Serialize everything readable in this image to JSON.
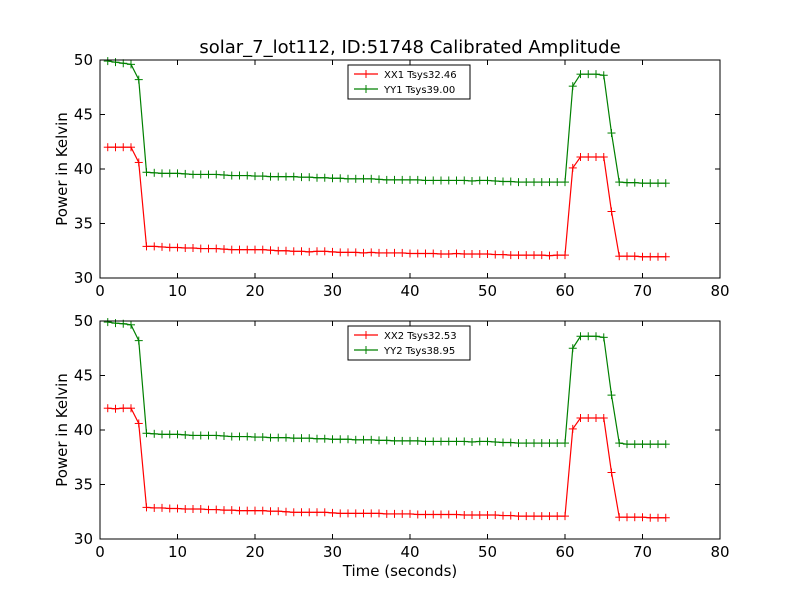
{
  "figure_title": "solar_7_lot112, ID:51748 Calibrated Amplitude",
  "chart_data": [
    {
      "type": "line",
      "title": "solar_7_lot112, ID:51748 Calibrated Amplitude",
      "xlabel": "",
      "ylabel": "Power in Kelvin",
      "xlim": [
        0,
        80
      ],
      "ylim": [
        30,
        50
      ],
      "xticks": [
        0,
        10,
        20,
        30,
        40,
        50,
        60,
        70,
        80
      ],
      "yticks": [
        30,
        35,
        40,
        45,
        50
      ],
      "grid": false,
      "legend_position": "top-center",
      "marker": "+",
      "series": [
        {
          "name": "XX1 Tsys32.46",
          "color": "#ff0000",
          "x": [
            1,
            2,
            3,
            4,
            5,
            6,
            7,
            8,
            9,
            10,
            11,
            12,
            13,
            14,
            15,
            16,
            17,
            18,
            19,
            20,
            21,
            22,
            23,
            24,
            25,
            26,
            27,
            28,
            29,
            30,
            31,
            32,
            33,
            34,
            35,
            36,
            37,
            38,
            39,
            40,
            41,
            42,
            43,
            44,
            45,
            46,
            47,
            48,
            49,
            50,
            51,
            52,
            53,
            54,
            55,
            56,
            57,
            58,
            59,
            60,
            61,
            62,
            63,
            64,
            65,
            66,
            67,
            68,
            69,
            70,
            71,
            72,
            73
          ],
          "y": [
            42.0,
            42.0,
            42.0,
            42.0,
            40.6,
            32.9,
            32.9,
            32.85,
            32.8,
            32.8,
            32.75,
            32.75,
            32.7,
            32.7,
            32.7,
            32.65,
            32.6,
            32.6,
            32.6,
            32.6,
            32.6,
            32.55,
            32.5,
            32.5,
            32.45,
            32.45,
            32.4,
            32.45,
            32.45,
            32.4,
            32.35,
            32.35,
            32.35,
            32.3,
            32.35,
            32.3,
            32.3,
            32.3,
            32.3,
            32.25,
            32.25,
            32.25,
            32.25,
            32.2,
            32.2,
            32.25,
            32.2,
            32.2,
            32.2,
            32.2,
            32.15,
            32.15,
            32.1,
            32.1,
            32.1,
            32.1,
            32.1,
            32.05,
            32.1,
            32.1,
            40.1,
            41.1,
            41.1,
            41.1,
            41.1,
            36.1,
            32.0,
            32.0,
            32.0,
            31.95,
            31.95,
            31.95,
            31.95
          ]
        },
        {
          "name": "YY1 Tsys39.00",
          "color": "#008000",
          "x": [
            1,
            2,
            3,
            4,
            5,
            6,
            7,
            8,
            9,
            10,
            11,
            12,
            13,
            14,
            15,
            16,
            17,
            18,
            19,
            20,
            21,
            22,
            23,
            24,
            25,
            26,
            27,
            28,
            29,
            30,
            31,
            32,
            33,
            34,
            35,
            36,
            37,
            38,
            39,
            40,
            41,
            42,
            43,
            44,
            45,
            46,
            47,
            48,
            49,
            50,
            51,
            52,
            53,
            54,
            55,
            56,
            57,
            58,
            59,
            60,
            61,
            62,
            63,
            64,
            65,
            66,
            67,
            68,
            69,
            70,
            71,
            72,
            73
          ],
          "y": [
            49.9,
            49.8,
            49.7,
            49.6,
            48.2,
            39.7,
            39.65,
            39.6,
            39.6,
            39.6,
            39.55,
            39.5,
            39.5,
            39.5,
            39.5,
            39.45,
            39.4,
            39.4,
            39.4,
            39.35,
            39.35,
            39.3,
            39.3,
            39.3,
            39.3,
            39.25,
            39.25,
            39.2,
            39.2,
            39.15,
            39.15,
            39.1,
            39.1,
            39.1,
            39.1,
            39.05,
            39.0,
            39.0,
            39.0,
            39.0,
            39.0,
            38.95,
            38.95,
            38.95,
            38.95,
            38.95,
            38.95,
            38.9,
            38.95,
            38.95,
            38.9,
            38.85,
            38.85,
            38.8,
            38.8,
            38.8,
            38.8,
            38.8,
            38.8,
            38.8,
            47.6,
            48.7,
            48.7,
            48.7,
            48.6,
            43.3,
            38.8,
            38.75,
            38.75,
            38.7,
            38.7,
            38.7,
            38.7
          ]
        }
      ]
    },
    {
      "type": "line",
      "title": "",
      "xlabel": "Time (seconds)",
      "ylabel": "Power in Kelvin",
      "xlim": [
        0,
        80
      ],
      "ylim": [
        30,
        50
      ],
      "xticks": [
        0,
        10,
        20,
        30,
        40,
        50,
        60,
        70,
        80
      ],
      "yticks": [
        30,
        35,
        40,
        45,
        50
      ],
      "grid": false,
      "legend_position": "top-center",
      "marker": "+",
      "series": [
        {
          "name": "XX2 Tsys32.53",
          "color": "#ff0000",
          "x": [
            1,
            2,
            3,
            4,
            5,
            6,
            7,
            8,
            9,
            10,
            11,
            12,
            13,
            14,
            15,
            16,
            17,
            18,
            19,
            20,
            21,
            22,
            23,
            24,
            25,
            26,
            27,
            28,
            29,
            30,
            31,
            32,
            33,
            34,
            35,
            36,
            37,
            38,
            39,
            40,
            41,
            42,
            43,
            44,
            45,
            46,
            47,
            48,
            49,
            50,
            51,
            52,
            53,
            54,
            55,
            56,
            57,
            58,
            59,
            60,
            61,
            62,
            63,
            64,
            65,
            66,
            67,
            68,
            69,
            70,
            71,
            72,
            73
          ],
          "y": [
            42.0,
            41.95,
            42.0,
            42.0,
            40.6,
            32.9,
            32.85,
            32.85,
            32.8,
            32.8,
            32.75,
            32.75,
            32.75,
            32.7,
            32.7,
            32.65,
            32.65,
            32.6,
            32.6,
            32.6,
            32.6,
            32.55,
            32.55,
            32.5,
            32.45,
            32.45,
            32.45,
            32.45,
            32.45,
            32.4,
            32.35,
            32.35,
            32.35,
            32.35,
            32.35,
            32.35,
            32.3,
            32.3,
            32.3,
            32.3,
            32.25,
            32.25,
            32.25,
            32.25,
            32.25,
            32.25,
            32.2,
            32.2,
            32.2,
            32.2,
            32.2,
            32.15,
            32.15,
            32.1,
            32.1,
            32.1,
            32.1,
            32.1,
            32.1,
            32.1,
            40.1,
            41.1,
            41.1,
            41.1,
            41.1,
            36.1,
            32.0,
            32.0,
            32.0,
            32.0,
            31.95,
            31.95,
            31.95
          ]
        },
        {
          "name": "YY2 Tsys38.95",
          "color": "#008000",
          "x": [
            1,
            2,
            3,
            4,
            5,
            6,
            7,
            8,
            9,
            10,
            11,
            12,
            13,
            14,
            15,
            16,
            17,
            18,
            19,
            20,
            21,
            22,
            23,
            24,
            25,
            26,
            27,
            28,
            29,
            30,
            31,
            32,
            33,
            34,
            35,
            36,
            37,
            38,
            39,
            40,
            41,
            42,
            43,
            44,
            45,
            46,
            47,
            48,
            49,
            50,
            51,
            52,
            53,
            54,
            55,
            56,
            57,
            58,
            59,
            60,
            61,
            62,
            63,
            64,
            65,
            66,
            67,
            68,
            69,
            70,
            71,
            72,
            73
          ],
          "y": [
            49.9,
            49.8,
            49.75,
            49.65,
            48.2,
            39.7,
            39.65,
            39.6,
            39.6,
            39.6,
            39.55,
            39.5,
            39.5,
            39.5,
            39.5,
            39.45,
            39.4,
            39.4,
            39.4,
            39.35,
            39.35,
            39.3,
            39.3,
            39.3,
            39.25,
            39.25,
            39.25,
            39.2,
            39.2,
            39.15,
            39.15,
            39.15,
            39.1,
            39.1,
            39.1,
            39.05,
            39.05,
            39.0,
            39.0,
            39.0,
            39.0,
            38.95,
            38.95,
            38.95,
            38.95,
            38.95,
            38.95,
            38.9,
            38.95,
            38.95,
            38.9,
            38.85,
            38.85,
            38.8,
            38.8,
            38.8,
            38.8,
            38.8,
            38.8,
            38.8,
            47.5,
            48.6,
            48.6,
            48.6,
            48.5,
            43.2,
            38.8,
            38.7,
            38.7,
            38.7,
            38.7,
            38.7,
            38.7
          ]
        }
      ]
    }
  ]
}
